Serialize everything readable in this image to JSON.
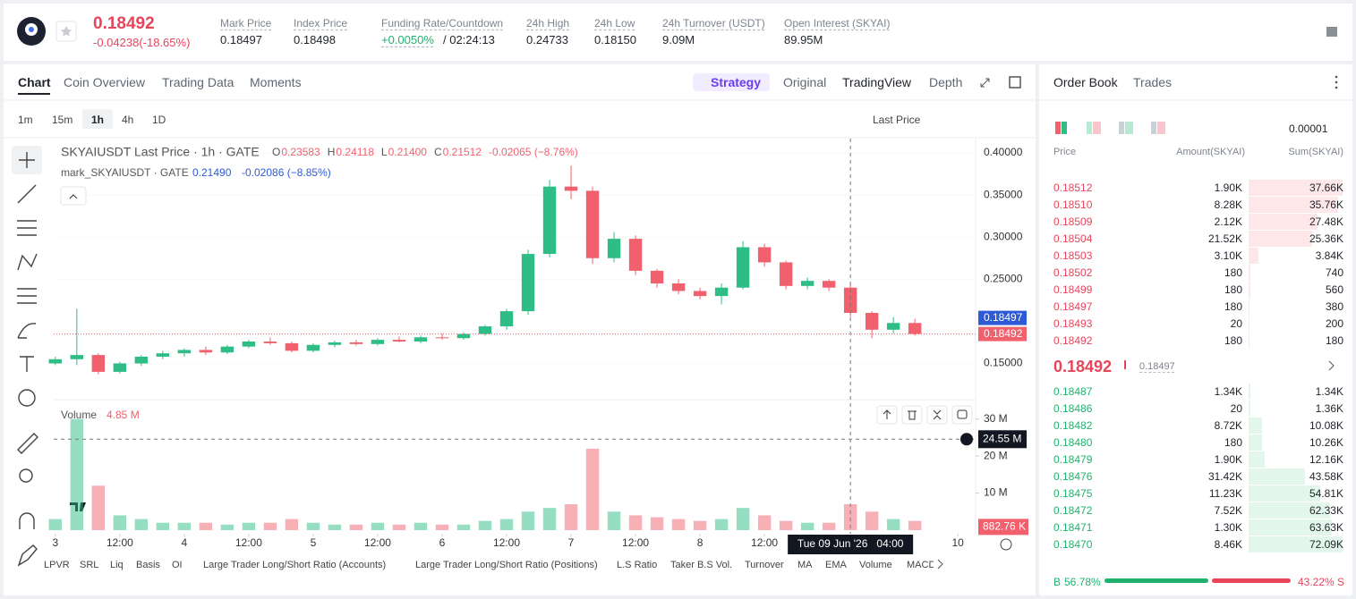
{
  "header": {
    "price": "0.18492",
    "change": "-0.04238(-18.65%)",
    "stats": [
      {
        "label": "Mark Price",
        "value": "0.18497"
      },
      {
        "label": "Index Price",
        "value": "0.18498"
      },
      {
        "label": "Funding Rate/Countdown",
        "value": "+0.0050%",
        "extra": "/ 02:24:13"
      },
      {
        "label": "24h High",
        "value": "0.24733"
      },
      {
        "label": "24h Low",
        "value": "0.18150"
      },
      {
        "label": "24h Turnover (USDT)",
        "value": "9.09M"
      },
      {
        "label": "Open Interest (SKYAI)",
        "value": "89.95M"
      }
    ]
  },
  "chart_tabs": [
    "Chart",
    "Coin Overview",
    "Trading Data",
    "Moments"
  ],
  "view_tabs": [
    "Strategy",
    "Original",
    "TradingView",
    "Depth"
  ],
  "intervals": [
    "1m",
    "15m",
    "1h",
    "4h",
    "1D"
  ],
  "price_source": "Last Price",
  "chart_data": [
    {
      "type": "candlestick",
      "title": "SKYAIUSDT Last Price · 1h · GATE",
      "legend": [
        {
          "key": "O",
          "value": "0.23583"
        },
        {
          "key": "H",
          "value": "0.24118"
        },
        {
          "key": "L",
          "value": "0.21400"
        },
        {
          "key": "C",
          "value": "0.21512"
        }
      ],
      "legend_change": "-0.02065 (−8.76%)",
      "mark_legend": {
        "name": "mark_SKYAIUSDT · GATE",
        "value": "0.21490",
        "change": "-0.02086 (−8.85%)"
      },
      "up_color": "#2ebd85",
      "down_color": "#f0616d",
      "x": [
        0,
        4,
        8,
        12,
        16,
        20,
        24,
        28,
        32,
        36,
        40,
        44,
        48,
        52,
        56,
        60,
        64,
        68,
        72,
        76,
        80,
        84,
        88,
        92,
        96,
        100,
        104,
        108,
        112,
        116,
        120,
        124,
        128,
        132,
        136,
        140,
        144,
        148,
        152,
        156,
        160
      ],
      "open": [
        0.15,
        0.155,
        0.16,
        0.14,
        0.15,
        0.158,
        0.162,
        0.166,
        0.163,
        0.17,
        0.176,
        0.174,
        0.165,
        0.172,
        0.175,
        0.173,
        0.178,
        0.176,
        0.181,
        0.18,
        0.185,
        0.194,
        0.212,
        0.28,
        0.36,
        0.355,
        0.275,
        0.298,
        0.26,
        0.245,
        0.236,
        0.23,
        0.24,
        0.288,
        0.27,
        0.242,
        0.248,
        0.24,
        0.21,
        0.19,
        0.198
      ],
      "high": [
        0.158,
        0.215,
        0.162,
        0.152,
        0.16,
        0.165,
        0.168,
        0.17,
        0.172,
        0.178,
        0.181,
        0.176,
        0.174,
        0.177,
        0.178,
        0.18,
        0.182,
        0.183,
        0.186,
        0.187,
        0.196,
        0.215,
        0.285,
        0.368,
        0.385,
        0.36,
        0.306,
        0.302,
        0.262,
        0.25,
        0.24,
        0.245,
        0.295,
        0.292,
        0.272,
        0.252,
        0.25,
        0.245,
        0.212,
        0.205,
        0.203
      ],
      "low": [
        0.148,
        0.148,
        0.137,
        0.138,
        0.147,
        0.155,
        0.158,
        0.16,
        0.161,
        0.168,
        0.172,
        0.163,
        0.163,
        0.169,
        0.171,
        0.171,
        0.175,
        0.174,
        0.178,
        0.178,
        0.183,
        0.19,
        0.208,
        0.276,
        0.345,
        0.268,
        0.27,
        0.255,
        0.24,
        0.232,
        0.226,
        0.22,
        0.238,
        0.265,
        0.238,
        0.238,
        0.236,
        0.205,
        0.18,
        0.186,
        0.183
      ],
      "close": [
        0.155,
        0.16,
        0.14,
        0.15,
        0.158,
        0.162,
        0.166,
        0.163,
        0.17,
        0.176,
        0.174,
        0.165,
        0.172,
        0.175,
        0.173,
        0.178,
        0.176,
        0.181,
        0.18,
        0.185,
        0.194,
        0.212,
        0.28,
        0.36,
        0.355,
        0.275,
        0.298,
        0.26,
        0.245,
        0.236,
        0.23,
        0.24,
        0.288,
        0.27,
        0.242,
        0.248,
        0.24,
        0.21,
        0.19,
        0.198,
        0.185
      ],
      "xlim": [
        -0.3,
        171.3
      ],
      "xticks": [
        {
          "value": 0,
          "label": "3"
        },
        {
          "value": 12,
          "label": "12:00"
        },
        {
          "value": 24,
          "label": "4"
        },
        {
          "value": 36,
          "label": "12:00"
        },
        {
          "value": 48,
          "label": "5"
        },
        {
          "value": 60,
          "label": "12:00"
        },
        {
          "value": 72,
          "label": "6"
        },
        {
          "value": 84,
          "label": "12:00"
        },
        {
          "value": 96,
          "label": "7"
        },
        {
          "value": 108,
          "label": "12:00"
        },
        {
          "value": 120,
          "label": "8"
        },
        {
          "value": 132,
          "label": "12:00"
        },
        {
          "value": 168,
          "label": "10"
        }
      ],
      "ylim": [
        0.107,
        0.417
      ],
      "yticks": [
        {
          "value": 0.4,
          "label": "0.40000"
        },
        {
          "value": 0.35,
          "label": "0.35000"
        },
        {
          "value": 0.3,
          "label": "0.30000"
        },
        {
          "value": 0.25,
          "label": "0.25000"
        },
        {
          "value": 0.15,
          "label": "0.15000"
        }
      ],
      "price_labels": [
        {
          "value": 0.18497,
          "label": "0.18497",
          "color": "#2d5bd7"
        },
        {
          "value": 0.18492,
          "label": "0.18492",
          "color": "#f0616d"
        }
      ],
      "crosshair": {
        "value": 148,
        "label": "Tue 09 Jun '26   04:00"
      }
    },
    {
      "type": "bar",
      "title": "Volume",
      "current": "4.85 M",
      "values": [
        3,
        30,
        12,
        4,
        3,
        2,
        2,
        2,
        1.5,
        2,
        2,
        3,
        2,
        1.5,
        1.5,
        2,
        1.5,
        2,
        1.5,
        1.5,
        2.5,
        3,
        5,
        6,
        7,
        22,
        5,
        4,
        3.5,
        3,
        2.5,
        3,
        6,
        4,
        2.5,
        2,
        2,
        7,
        5,
        3,
        2.5
      ],
      "ylim": [
        0,
        33.3
      ],
      "yticks": [
        {
          "value": 30,
          "label": "30 M"
        },
        {
          "value": 20,
          "label": "20 M"
        },
        {
          "value": 10,
          "label": "10 M"
        }
      ],
      "last_label": {
        "value": 0.88276,
        "label": "882.76 K"
      },
      "crosshair": {
        "value": 24.55,
        "label": "24.55 M"
      }
    }
  ],
  "indicators": [
    "LPVR",
    "SRL",
    "Liq",
    "Basis",
    "OI",
    "Large Trader Long/Short Ratio (Accounts)",
    "Large Trader Long/Short Ratio (Positions)",
    "L.S Ratio",
    "Taker B.S Vol.",
    "Turnover",
    "MA",
    "EMA",
    "Volume",
    "MACD"
  ],
  "order_book": {
    "tabs": [
      "Order Book",
      "Trades"
    ],
    "precision": "0.00001",
    "columns": [
      "Price",
      "Amount(SKYAI)",
      "Sum(SKYAI)"
    ],
    "asks": [
      {
        "price": "0.18512",
        "amount": "1.90K",
        "sum": {
          "value": 37660,
          "label": "37.66K"
        }
      },
      {
        "price": "0.18510",
        "amount": "8.28K",
        "sum": {
          "value": 35760,
          "label": "35.76K"
        }
      },
      {
        "price": "0.18509",
        "amount": "2.12K",
        "sum": {
          "value": 27480,
          "label": "27.48K"
        }
      },
      {
        "price": "0.18504",
        "amount": "21.52K",
        "sum": {
          "value": 25360,
          "label": "25.36K"
        }
      },
      {
        "price": "0.18503",
        "amount": "3.10K",
        "sum": {
          "value": 3840,
          "label": "3.84K"
        }
      },
      {
        "price": "0.18502",
        "amount": "180",
        "sum": 740
      },
      {
        "price": "0.18499",
        "amount": "180",
        "sum": 560
      },
      {
        "price": "0.18497",
        "amount": "180",
        "sum": 380
      },
      {
        "price": "0.18493",
        "amount": "20",
        "sum": 200
      },
      {
        "price": "0.18492",
        "amount": "180",
        "sum": 180
      }
    ],
    "last_price": "0.18492",
    "mark_price": "0.18497",
    "bids": [
      {
        "price": "0.18487",
        "amount": "1.34K",
        "sum": {
          "value": 1340,
          "label": "1.34K"
        }
      },
      {
        "price": "0.18486",
        "amount": "20",
        "sum": {
          "value": 1360,
          "label": "1.36K"
        }
      },
      {
        "price": "0.18482",
        "amount": "8.72K",
        "sum": {
          "value": 10080,
          "label": "10.08K"
        }
      },
      {
        "price": "0.18480",
        "amount": "180",
        "sum": {
          "value": 10260,
          "label": "10.26K"
        }
      },
      {
        "price": "0.18479",
        "amount": "1.90K",
        "sum": {
          "value": 12160,
          "label": "12.16K"
        }
      },
      {
        "price": "0.18476",
        "amount": "31.42K",
        "sum": {
          "value": 43580,
          "label": "43.58K"
        }
      },
      {
        "price": "0.18475",
        "amount": "11.23K",
        "sum": {
          "value": 54810,
          "label": "54.81K"
        }
      },
      {
        "price": "0.18472",
        "amount": "7.52K",
        "sum": {
          "value": 62330,
          "label": "62.33K"
        }
      },
      {
        "price": "0.18471",
        "amount": "1.30K",
        "sum": {
          "value": 63630,
          "label": "63.63K"
        }
      },
      {
        "price": "0.18470",
        "amount": "8.46K",
        "sum": {
          "value": 72090,
          "label": "72.09K"
        }
      }
    ],
    "buy_key": "B",
    "buy": {
      "value": 56.78,
      "label": "56.78%"
    },
    "sell": {
      "value": 43.22,
      "label": "43.22%"
    },
    "sell_key": "S"
  }
}
